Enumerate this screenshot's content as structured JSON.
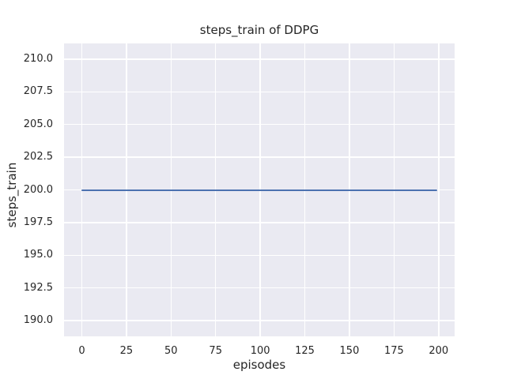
{
  "figure": {
    "background": "#ffffff"
  },
  "chart_data": {
    "type": "line",
    "title": "steps_train of DDPG",
    "xlabel": "episodes",
    "ylabel": "steps_train",
    "xlim": [
      -9.95,
      208.95
    ],
    "ylim": [
      188.8,
      211.2
    ],
    "grid": true,
    "legend": false,
    "xticks": {
      "values": [
        0,
        25,
        50,
        75,
        100,
        125,
        150,
        175,
        200
      ],
      "labels": [
        "0",
        "25",
        "50",
        "75",
        "100",
        "125",
        "150",
        "175",
        "200"
      ]
    },
    "yticks": {
      "values": [
        190,
        192.5,
        195,
        197.5,
        200,
        202.5,
        205,
        207.5,
        210
      ],
      "labels": [
        "190.0",
        "192.5",
        "195.0",
        "197.5",
        "200.0",
        "202.5",
        "205.0",
        "207.5",
        "210.0"
      ]
    },
    "series": [
      {
        "name": "steps_train",
        "color": "#4c72b0",
        "line_width": 2,
        "points": [
          [
            0,
            200
          ],
          [
            199,
            200
          ]
        ]
      }
    ],
    "style": {
      "axes_background": "#eaeaf2",
      "grid_color": "#ffffff",
      "text_color": "#262626",
      "figure_background": "#ffffff"
    }
  }
}
